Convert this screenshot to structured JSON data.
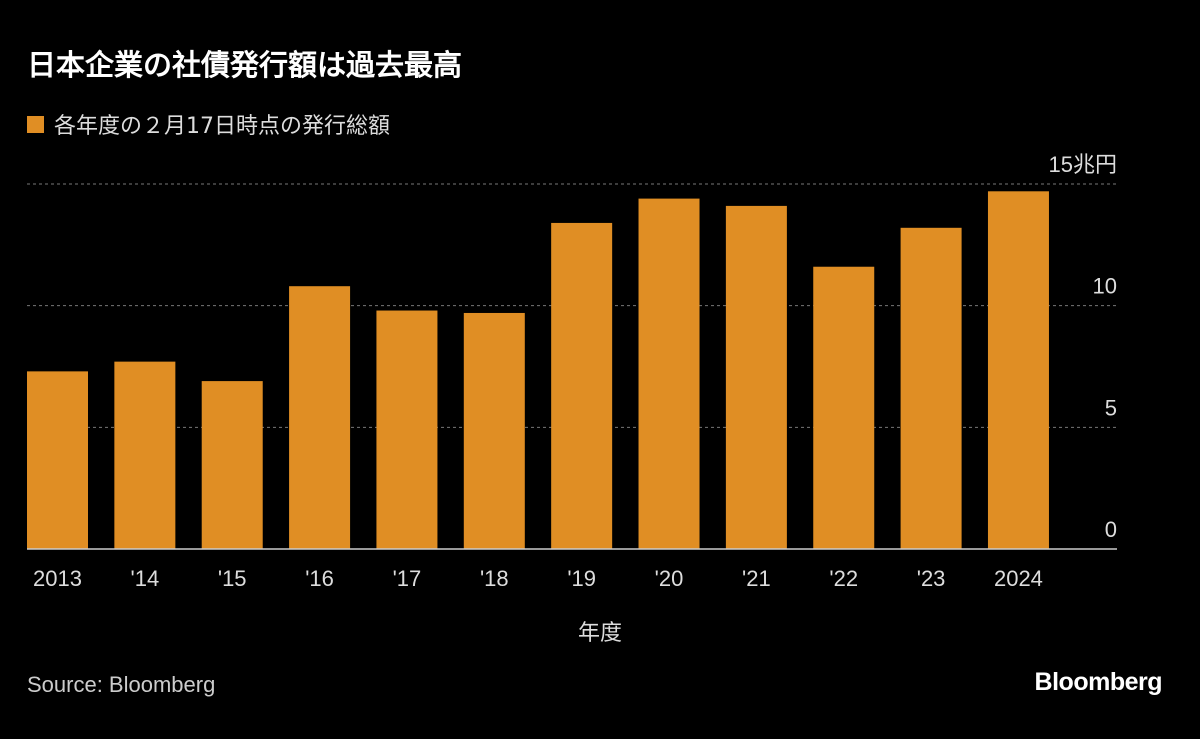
{
  "title": "日本企業の社債発行額は過去最高",
  "source": "Source: Bloomberg",
  "logo": "Bloomberg",
  "colors": {
    "bar": "#E08E24",
    "background": "#000000",
    "grid": "#777777"
  },
  "chart_data": {
    "type": "bar",
    "title": "日本企業の社債発行額は過去最高",
    "xlabel": "年度",
    "ylabel": "",
    "ylim": [
      0,
      15
    ],
    "yticks": [
      0,
      5,
      10,
      15
    ],
    "ytick_labels": [
      "0",
      "5",
      "10",
      "15兆円"
    ],
    "grid": true,
    "legend_position": "top-left",
    "categories": [
      "2013",
      "'14",
      "'15",
      "'16",
      "'17",
      "'18",
      "'19",
      "'20",
      "'21",
      "'22",
      "'23",
      "2024"
    ],
    "series": [
      {
        "name": "各年度の２月17日時点の発行総額",
        "values": [
          7.3,
          7.7,
          6.9,
          10.8,
          9.8,
          9.7,
          13.4,
          14.4,
          14.1,
          11.6,
          13.2,
          14.7
        ]
      }
    ]
  }
}
